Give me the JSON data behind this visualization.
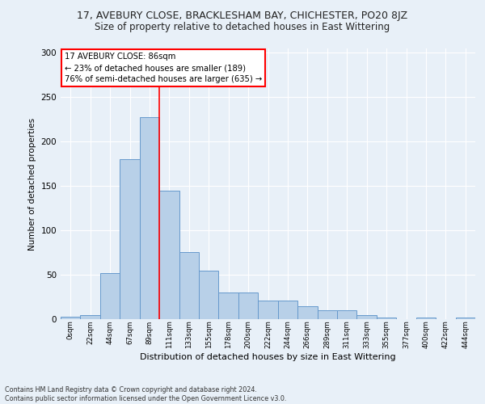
{
  "title": "17, AVEBURY CLOSE, BRACKLESHAM BAY, CHICHESTER, PO20 8JZ",
  "subtitle": "Size of property relative to detached houses in East Wittering",
  "xlabel": "Distribution of detached houses by size in East Wittering",
  "ylabel": "Number of detached properties",
  "bar_values": [
    3,
    5,
    52,
    180,
    228,
    145,
    76,
    55,
    30,
    30,
    21,
    21,
    15,
    10,
    10,
    5,
    2,
    0,
    2,
    0,
    2
  ],
  "bar_color": "#b8d0e8",
  "bar_edge_color": "#6699cc",
  "tick_labels": [
    "0sqm",
    "22sqm",
    "44sqm",
    "67sqm",
    "89sqm",
    "111sqm",
    "133sqm",
    "155sqm",
    "178sqm",
    "200sqm",
    "222sqm",
    "244sqm",
    "266sqm",
    "289sqm",
    "311sqm",
    "333sqm",
    "355sqm",
    "377sqm",
    "400sqm",
    "422sqm",
    "444sqm"
  ],
  "ylim": [
    0,
    305
  ],
  "yticks": [
    0,
    50,
    100,
    150,
    200,
    250,
    300
  ],
  "redline_x": 4.5,
  "annotation_text": "17 AVEBURY CLOSE: 86sqm\n← 23% of detached houses are smaller (189)\n76% of semi-detached houses are larger (635) →",
  "footer_text": "Contains HM Land Registry data © Crown copyright and database right 2024.\nContains public sector information licensed under the Open Government Licence v3.0.",
  "background_color": "#e8f0f8",
  "fig_background_color": "#e8f0f8",
  "grid_color": "#ffffff"
}
